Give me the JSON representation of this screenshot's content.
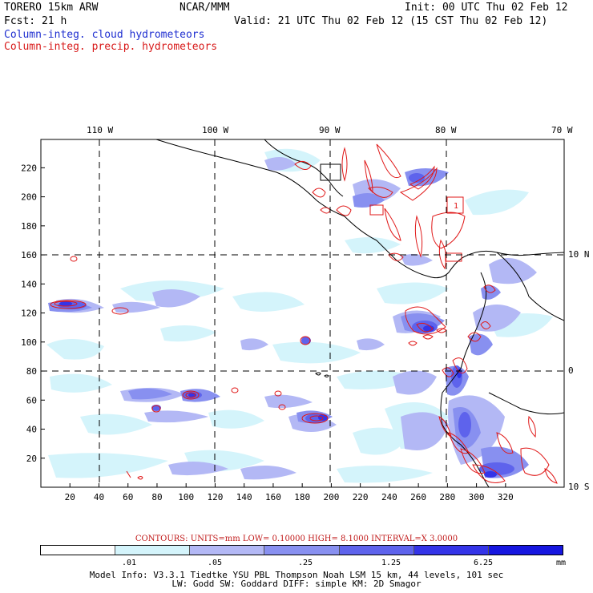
{
  "header": {
    "model": "TORERO  15km ARW",
    "org": "NCAR/MMM",
    "init": "Init: 00 UTC Thu 02 Feb 12",
    "fcst": "Fcst:   21 h",
    "valid": "Valid: 21 UTC Thu 02 Feb 12 (15 CST Thu 02 Feb 12)",
    "field_cloud": "Column-integ. cloud hydrometeors",
    "field_precip": "Column-integ. precip. hydrometeors"
  },
  "map": {
    "top_lon_labels": [
      "110 W",
      "100 W",
      "90 W",
      "80 W",
      "70 W"
    ],
    "right_lat_labels": [
      "10 N",
      "0",
      "10 S"
    ],
    "x_ticks": [
      "20",
      "40",
      "60",
      "80",
      "100",
      "120",
      "140",
      "160",
      "180",
      "200",
      "220",
      "240",
      "260",
      "280",
      "300",
      "320"
    ],
    "y_ticks": [
      "20",
      "40",
      "60",
      "80",
      "100",
      "120",
      "140",
      "160",
      "180",
      "200",
      "220"
    ],
    "contour_inline_label": "1"
  },
  "contours_info": "CONTOURS:  UNITS=mm  LOW= 0.10000     HIGH=  8.1000     INTERVAL=X  3.0000",
  "legend": {
    "unit": "mm",
    "labels": [
      ".01",
      ".05",
      ".25",
      "1.25",
      "6.25"
    ],
    "colors": [
      "#ffffff",
      "#d4f4fb",
      "#b3b8f5",
      "#8890f0",
      "#5e63ec",
      "#3434e8",
      "#1616e0"
    ]
  },
  "footer": {
    "line1": "Model Info: V3.3.1   Tiedtke YSU PBL  Thompson    Noah LSM  15 km,   44 levels,  101 sec",
    "line2": "LW: Godd SW: Goddard DIFF: simple KM: 2D Smagor"
  },
  "colors": {
    "cloud_label": "#1f2fd0",
    "precip_label": "#d81a1a",
    "precip_contour": "#e01818"
  }
}
